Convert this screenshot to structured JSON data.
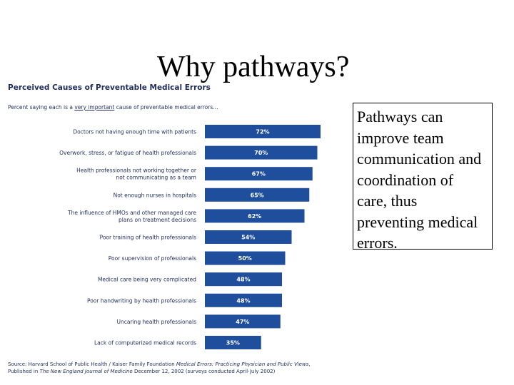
{
  "slide": {
    "title": "Why pathways?",
    "callout_text": "Pathways can improve team communication and  coordination of care, thus preventing medical errors."
  },
  "chart_data": {
    "type": "bar",
    "orientation": "horizontal",
    "title": "Perceived Causes of Preventable Medical Errors",
    "subtitle_prefix": "Percent saying each is a ",
    "subtitle_emphasis": "very important",
    "subtitle_suffix": " cause of preventable medical errors…",
    "categories": [
      [
        "Doctors not having enough time with patients"
      ],
      [
        "Overwork, stress, or fatigue of health professionals"
      ],
      [
        "Health professionals not working together or",
        "not communicating as a team"
      ],
      [
        "Not enough nurses in hospitals"
      ],
      [
        "The influence of HMOs and other managed care",
        "plans on treatment decisions"
      ],
      [
        "Poor training of health professionals"
      ],
      [
        "Poor supervision of professionals"
      ],
      [
        "Medical care being very complicated"
      ],
      [
        "Poor handwriting by health professionals"
      ],
      [
        "Uncaring health professionals"
      ],
      [
        "Lack of computerized medical records"
      ]
    ],
    "values": [
      72,
      70,
      67,
      65,
      62,
      54,
      50,
      48,
      48,
      47,
      35
    ],
    "value_labels": [
      "72%",
      "70%",
      "67%",
      "65%",
      "62%",
      "54%",
      "50%",
      "48%",
      "48%",
      "47%",
      "35%"
    ],
    "xlim": [
      0,
      100
    ],
    "grid": false,
    "bar_color": "#1f4e9c",
    "label_color": "#1f2d5c",
    "source_line1_a": "Source: Harvard School of Public Health / Kaiser Family Foundation ",
    "source_line1_b": "Medical Errors: Practicing Physician and Public Views",
    "source_line1_c": ",",
    "source_line2_a": "Published in ",
    "source_line2_b": "The New England Journal of Medicine",
    "source_line2_c": " December 12, 2002 (surveys conducted April-July 2002)"
  }
}
